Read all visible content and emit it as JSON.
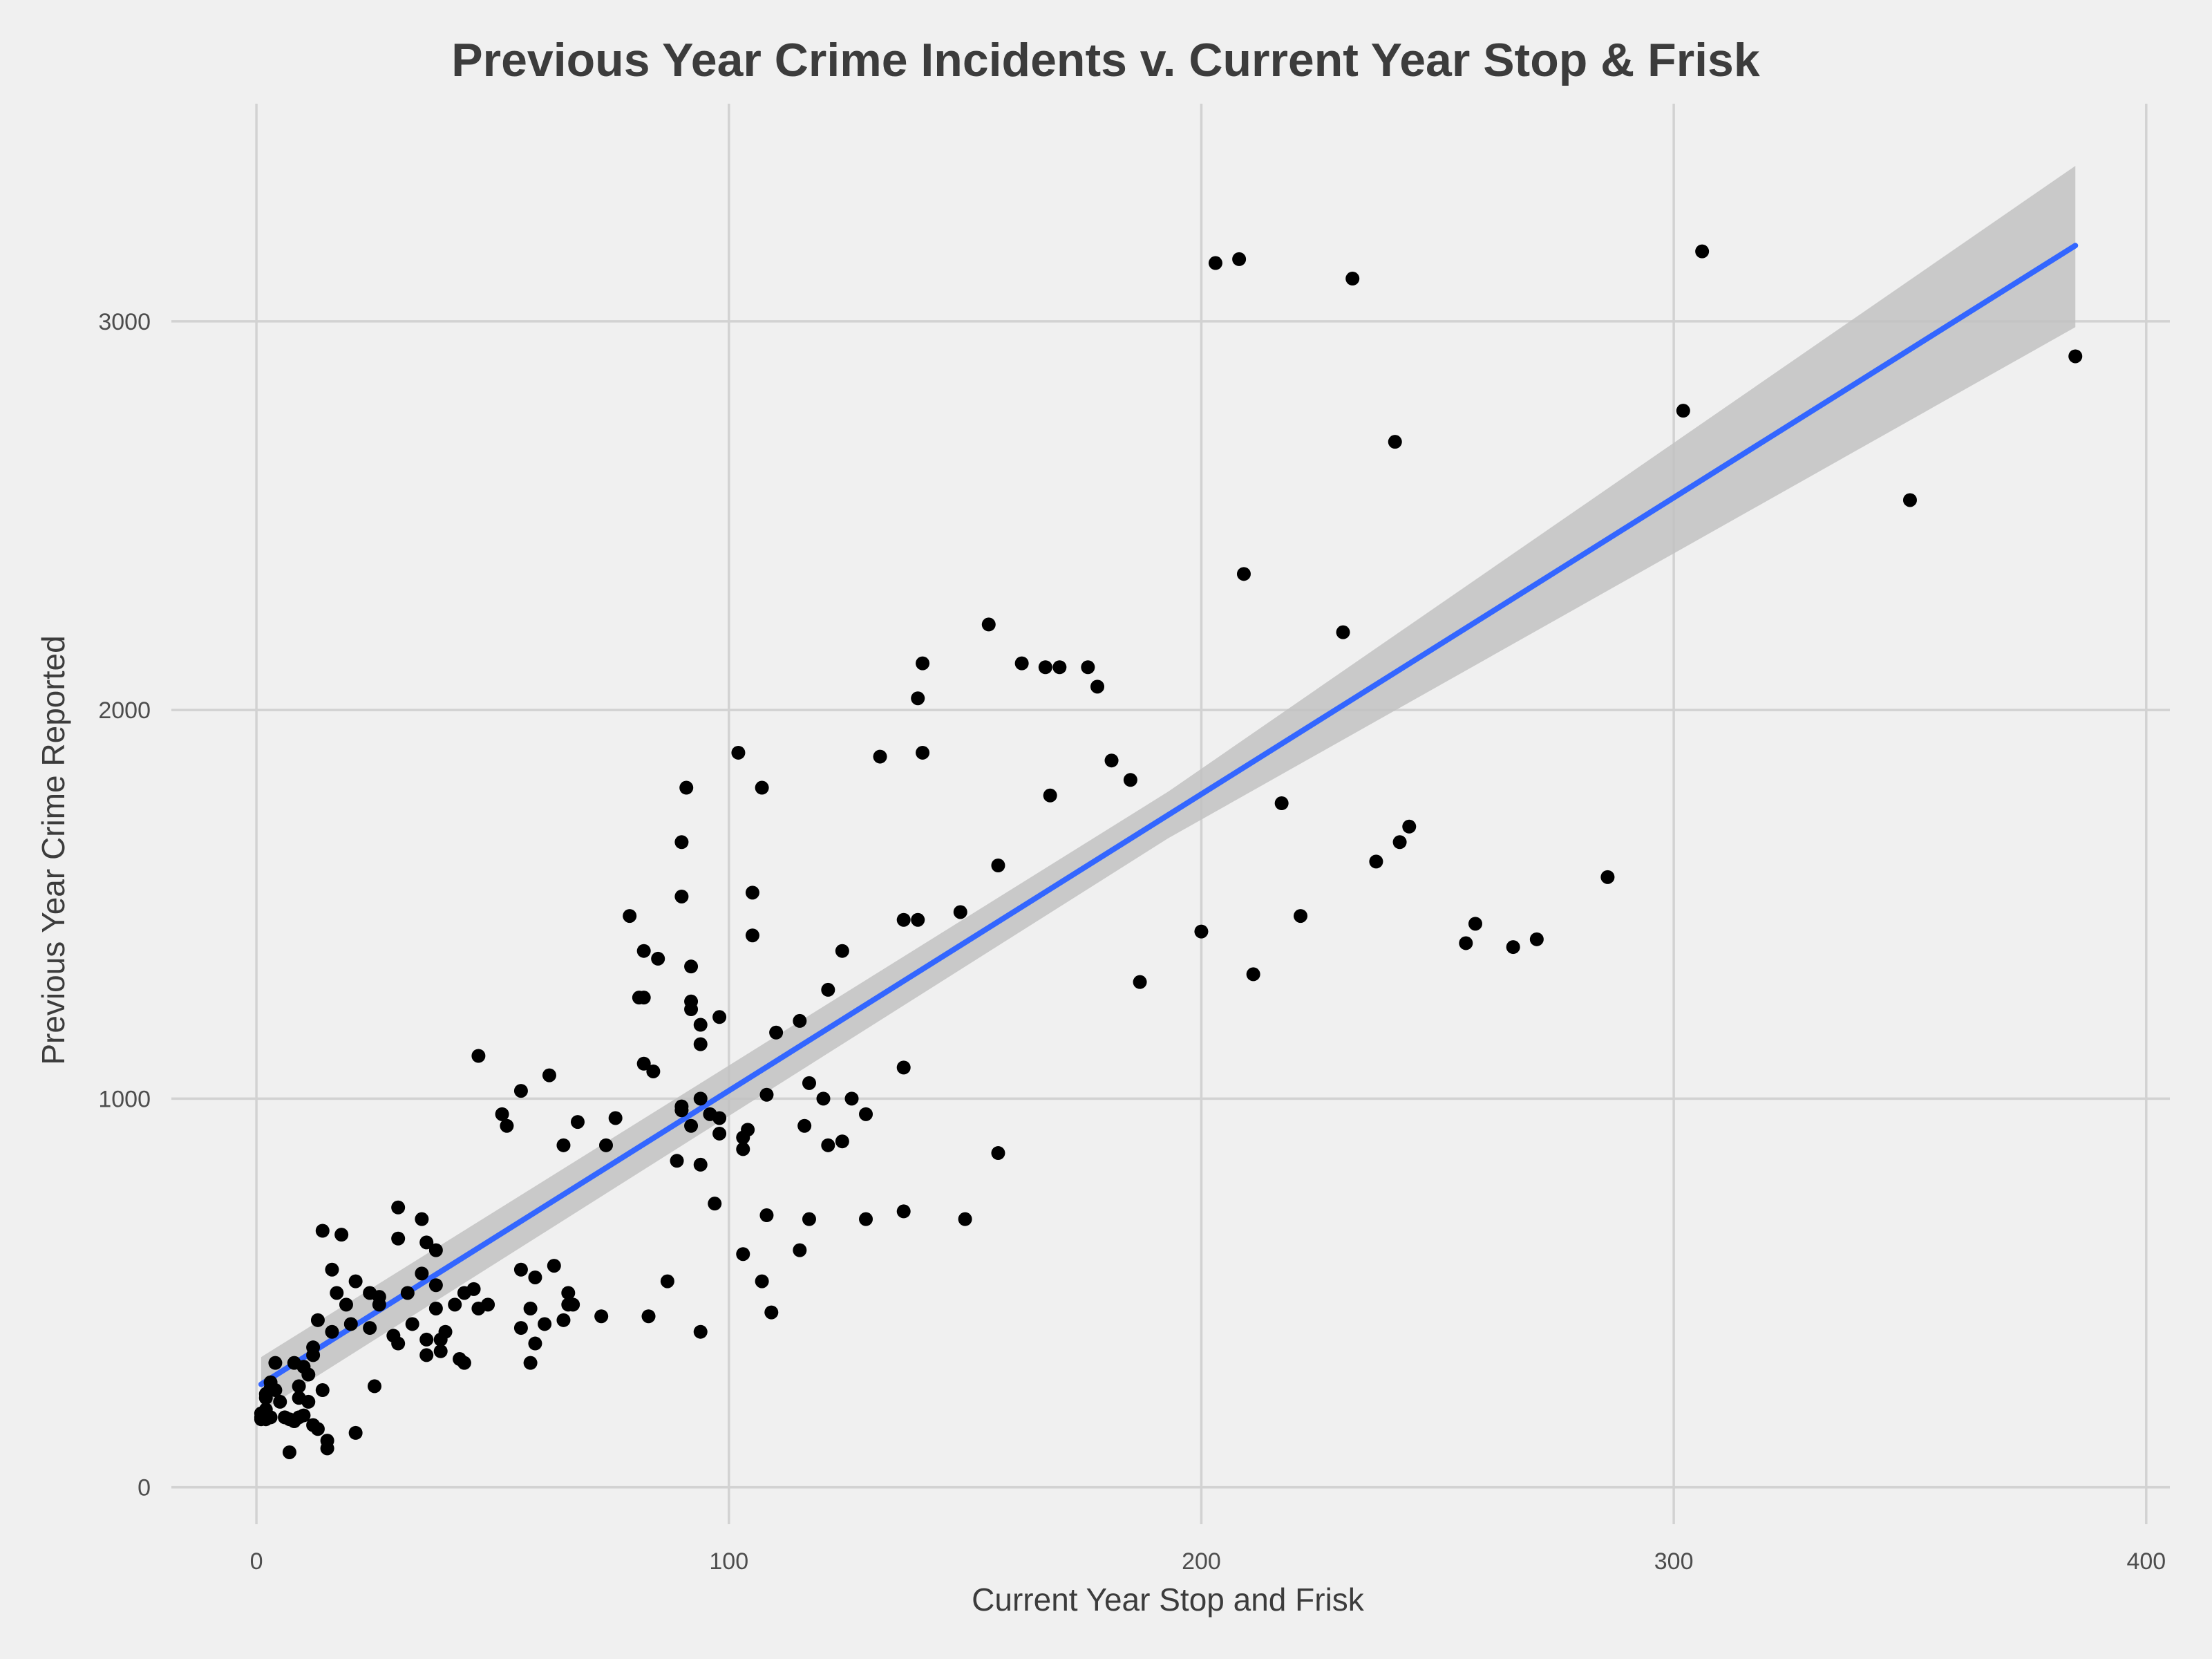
{
  "chart_data": {
    "type": "scatter",
    "title": "Previous Year Crime Incidents v. Current Year Stop & Frisk",
    "xlabel": "Current Year Stop and Frisk",
    "ylabel": "Previous Year Crime Reported",
    "xlim": [
      -18,
      405
    ],
    "ylim": [
      -95,
      3560
    ],
    "x_ticks": [
      0,
      100,
      200,
      300,
      400
    ],
    "y_ticks": [
      0,
      1000,
      2000,
      3000
    ],
    "grid": true,
    "legend": "none",
    "colors": {
      "background": "#f0f0f0",
      "points": "#000000",
      "fit_line": "#3366ff",
      "confidence_band": "#c2c2c2",
      "grid": "#d2d2d2",
      "text": "#3c3c3c"
    },
    "fit_line": {
      "x": [
        1,
        385
      ],
      "y": [
        265,
        3195
      ]
    },
    "confidence_band": {
      "x": [
        1,
        193,
        385
      ],
      "upper": [
        335,
        1790,
        3400
      ],
      "lower": [
        195,
        1670,
        2985
      ]
    },
    "points": [
      [
        1,
        180
      ],
      [
        1,
        190
      ],
      [
        1,
        175
      ],
      [
        2,
        240
      ],
      [
        2,
        230
      ],
      [
        2,
        200
      ],
      [
        2,
        175
      ],
      [
        3,
        270
      ],
      [
        3,
        255
      ],
      [
        3,
        180
      ],
      [
        4,
        320
      ],
      [
        4,
        250
      ],
      [
        5,
        220
      ],
      [
        6,
        180
      ],
      [
        7,
        90
      ],
      [
        7,
        175
      ],
      [
        8,
        320
      ],
      [
        8,
        170
      ],
      [
        9,
        260
      ],
      [
        9,
        180
      ],
      [
        9,
        230
      ],
      [
        10,
        310
      ],
      [
        10,
        185
      ],
      [
        11,
        290
      ],
      [
        11,
        220
      ],
      [
        12,
        360
      ],
      [
        12,
        340
      ],
      [
        12,
        160
      ],
      [
        13,
        430
      ],
      [
        13,
        150
      ],
      [
        14,
        660
      ],
      [
        14,
        250
      ],
      [
        15,
        120
      ],
      [
        15,
        100
      ],
      [
        16,
        560
      ],
      [
        16,
        400
      ],
      [
        17,
        500
      ],
      [
        18,
        650
      ],
      [
        19,
        470
      ],
      [
        20,
        420
      ],
      [
        21,
        530
      ],
      [
        21,
        140
      ],
      [
        24,
        500
      ],
      [
        24,
        410
      ],
      [
        25,
        260
      ],
      [
        26,
        490
      ],
      [
        26,
        470
      ],
      [
        29,
        390
      ],
      [
        30,
        720
      ],
      [
        30,
        640
      ],
      [
        30,
        370
      ],
      [
        32,
        500
      ],
      [
        33,
        420
      ],
      [
        35,
        690
      ],
      [
        35,
        550
      ],
      [
        36,
        630
      ],
      [
        36,
        380
      ],
      [
        36,
        340
      ],
      [
        38,
        610
      ],
      [
        38,
        520
      ],
      [
        38,
        460
      ],
      [
        39,
        380
      ],
      [
        39,
        350
      ],
      [
        40,
        400
      ],
      [
        42,
        470
      ],
      [
        43,
        330
      ],
      [
        44,
        500
      ],
      [
        44,
        320
      ],
      [
        46,
        510
      ],
      [
        47,
        1110
      ],
      [
        47,
        460
      ],
      [
        49,
        470
      ],
      [
        52,
        960
      ],
      [
        53,
        930
      ],
      [
        56,
        1020
      ],
      [
        56,
        560
      ],
      [
        56,
        410
      ],
      [
        58,
        460
      ],
      [
        58,
        320
      ],
      [
        59,
        540
      ],
      [
        59,
        370
      ],
      [
        61,
        420
      ],
      [
        62,
        1060
      ],
      [
        63,
        570
      ],
      [
        65,
        880
      ],
      [
        65,
        430
      ],
      [
        66,
        500
      ],
      [
        66,
        470
      ],
      [
        67,
        470
      ],
      [
        68,
        940
      ],
      [
        73,
        440
      ],
      [
        74,
        880
      ],
      [
        76,
        950
      ],
      [
        79,
        1470
      ],
      [
        81,
        1260
      ],
      [
        82,
        1380
      ],
      [
        82,
        1260
      ],
      [
        82,
        1090
      ],
      [
        83,
        440
      ],
      [
        84,
        1070
      ],
      [
        85,
        1360
      ],
      [
        87,
        530
      ],
      [
        89,
        840
      ],
      [
        90,
        1660
      ],
      [
        90,
        1520
      ],
      [
        90,
        970
      ],
      [
        90,
        980
      ],
      [
        91,
        1800
      ],
      [
        92,
        1340
      ],
      [
        92,
        1250
      ],
      [
        92,
        1230
      ],
      [
        92,
        930
      ],
      [
        94,
        1190
      ],
      [
        94,
        1140
      ],
      [
        94,
        1000
      ],
      [
        94,
        830
      ],
      [
        94,
        400
      ],
      [
        96,
        960
      ],
      [
        97,
        730
      ],
      [
        98,
        1210
      ],
      [
        98,
        950
      ],
      [
        98,
        910
      ],
      [
        102,
        1890
      ],
      [
        103,
        900
      ],
      [
        103,
        870
      ],
      [
        103,
        600
      ],
      [
        104,
        920
      ],
      [
        105,
        1530
      ],
      [
        105,
        1420
      ],
      [
        107,
        1800
      ],
      [
        107,
        530
      ],
      [
        108,
        1010
      ],
      [
        108,
        700
      ],
      [
        109,
        450
      ],
      [
        110,
        1170
      ],
      [
        115,
        1200
      ],
      [
        115,
        610
      ],
      [
        116,
        930
      ],
      [
        117,
        1040
      ],
      [
        117,
        690
      ],
      [
        120,
        1000
      ],
      [
        121,
        1280
      ],
      [
        121,
        880
      ],
      [
        124,
        1380
      ],
      [
        124,
        890
      ],
      [
        126,
        1000
      ],
      [
        129,
        960
      ],
      [
        129,
        690
      ],
      [
        132,
        1880
      ],
      [
        137,
        1460
      ],
      [
        137,
        1080
      ],
      [
        137,
        710
      ],
      [
        140,
        2030
      ],
      [
        140,
        1460
      ],
      [
        141,
        2120
      ],
      [
        141,
        1890
      ],
      [
        149,
        1480
      ],
      [
        150,
        690
      ],
      [
        155,
        2220
      ],
      [
        157,
        1600
      ],
      [
        157,
        860
      ],
      [
        162,
        2120
      ],
      [
        167,
        2110
      ],
      [
        168,
        1780
      ],
      [
        170,
        2110
      ],
      [
        176,
        2110
      ],
      [
        178,
        2060
      ],
      [
        181,
        1870
      ],
      [
        185,
        1820
      ],
      [
        187,
        1300
      ],
      [
        200,
        1430
      ],
      [
        203,
        3150
      ],
      [
        208,
        3160
      ],
      [
        209,
        2350
      ],
      [
        211,
        1320
      ],
      [
        217,
        1760
      ],
      [
        221,
        1470
      ],
      [
        230,
        2200
      ],
      [
        232,
        3110
      ],
      [
        237,
        1610
      ],
      [
        241,
        2690
      ],
      [
        242,
        1660
      ],
      [
        244,
        1700
      ],
      [
        256,
        1400
      ],
      [
        258,
        1450
      ],
      [
        266,
        1390
      ],
      [
        271,
        1410
      ],
      [
        286,
        1570
      ],
      [
        302,
        2770
      ],
      [
        306,
        3180
      ],
      [
        350,
        2540
      ],
      [
        385,
        2910
      ]
    ]
  }
}
